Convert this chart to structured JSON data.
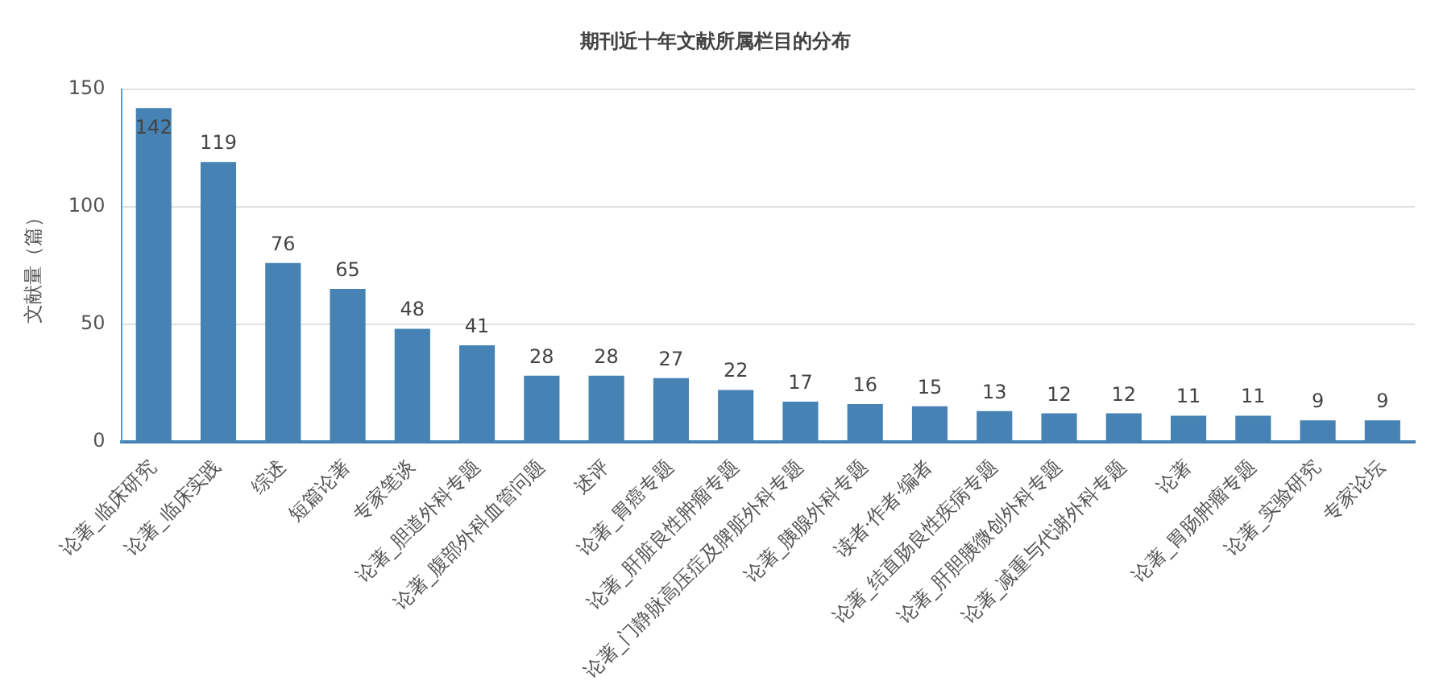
{
  "chart_data": {
    "type": "bar",
    "title": "期刊近十年文献所属栏目的分布",
    "ylabel": "文献量（篇）",
    "categories": [
      "论著_临床研究",
      "论著_临床实践",
      "综述",
      "短篇论著",
      "专家笔谈",
      "论著_胆道外科专题",
      "论著_腹部外科血管问题",
      "述评",
      "论著_胃癌专题",
      "论著_肝脏良性肿瘤专题",
      "论著_门静脉高压症及脾脏外科专题",
      "论著_胰腺外科专题",
      "读者·作者·编者",
      "论著_结直肠良性疾病专题",
      "论著_肝胆胰微创外科专题",
      "论著_减重与代谢外科专题",
      "论著",
      "论著_胃肠肿瘤专题",
      "论著_实验研究",
      "专家论坛"
    ],
    "values": [
      142,
      119,
      76,
      65,
      48,
      41,
      28,
      28,
      27,
      22,
      17,
      16,
      15,
      13,
      12,
      12,
      11,
      11,
      9,
      9
    ],
    "color": "#4682b4",
    "ylim": [
      0,
      150
    ],
    "yticks": [
      0,
      50,
      100,
      150
    ],
    "grid": "y",
    "data_labels": true,
    "legend": false
  }
}
